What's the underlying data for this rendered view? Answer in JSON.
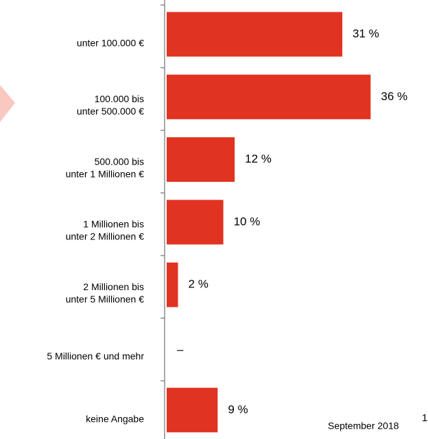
{
  "chart_data": {
    "type": "bar",
    "orientation": "horizontal",
    "categories": [
      [
        "unter 100.000 €"
      ],
      [
        "100.000 bis",
        "unter 500.000 €"
      ],
      [
        "500.000 bis",
        "unter 1 Millionen €"
      ],
      [
        "1 Millionen bis",
        "unter 2 Millionen €"
      ],
      [
        "2 Millionen bis",
        "unter 5 Millionen €"
      ],
      [
        "5 Millionen € und mehr"
      ],
      [
        "keine Angabe"
      ]
    ],
    "values": [
      31,
      36,
      12,
      10,
      2,
      null,
      9
    ],
    "value_labels": [
      "31 %",
      "36 %",
      "12 %",
      "10 %",
      "2 %",
      "–",
      "9 %"
    ],
    "color": "#e03322"
  },
  "footer": {
    "date": "September 2018",
    "page": "1"
  }
}
